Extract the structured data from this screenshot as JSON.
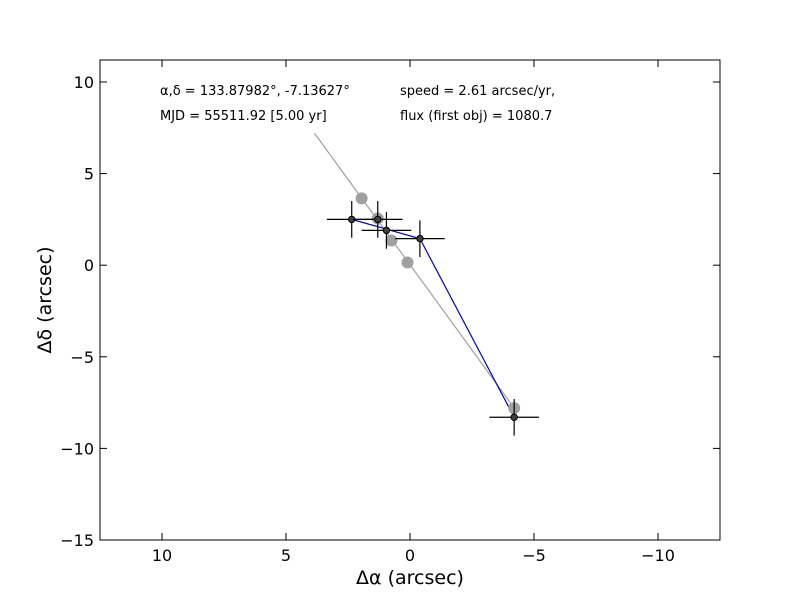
{
  "chart_data": {
    "type": "scatter",
    "title": "",
    "xlabel": "Δα (arcsec)",
    "ylabel": "Δδ (arcsec)",
    "xlim": [
      12.5,
      -12.5
    ],
    "ylim": [
      -15,
      11.2
    ],
    "x_ticks": [
      10,
      5,
      0,
      -5,
      -10
    ],
    "x_tick_labels": [
      "10",
      "5",
      "0",
      "−5",
      "−10"
    ],
    "y_ticks": [
      10,
      5,
      0,
      -5,
      -10,
      -15
    ],
    "y_tick_labels": [
      "10",
      "5",
      "0",
      "−5",
      "−10",
      "−15"
    ],
    "grid": false,
    "annotations": {
      "radec": "α,δ = 133.87982°, -7.13627°",
      "mjd": "MJD = 55511.92 [5.00 yr]",
      "speed": "speed = 2.61 arcsec/yr,",
      "flux": "flux (first obj) = 1080.7"
    },
    "fit_line": {
      "color": "#a0a0a0",
      "x": [
        3.85,
        -4.2
      ],
      "y": [
        7.2,
        -7.8
      ]
    },
    "predicted_points": {
      "color": "#a0a0a0",
      "x": [
        1.95,
        1.3,
        0.75,
        0.1,
        -4.2
      ],
      "y": [
        3.65,
        2.55,
        1.35,
        0.15,
        -7.8
      ]
    },
    "observed_track": {
      "color": "#0000cc",
      "x": [
        2.35,
        -0.4,
        -4.2
      ],
      "y": [
        2.5,
        1.45,
        -8.3
      ]
    },
    "observations": {
      "color": "#000000",
      "marker_fill": "#404040",
      "x": [
        2.35,
        1.3,
        0.95,
        -0.4,
        -4.2
      ],
      "y": [
        2.5,
        2.5,
        1.9,
        1.45,
        -8.3
      ],
      "xerr": [
        1.0,
        1.0,
        1.0,
        1.0,
        1.0
      ],
      "yerr": [
        1.0,
        1.0,
        1.0,
        1.0,
        1.0
      ]
    }
  }
}
